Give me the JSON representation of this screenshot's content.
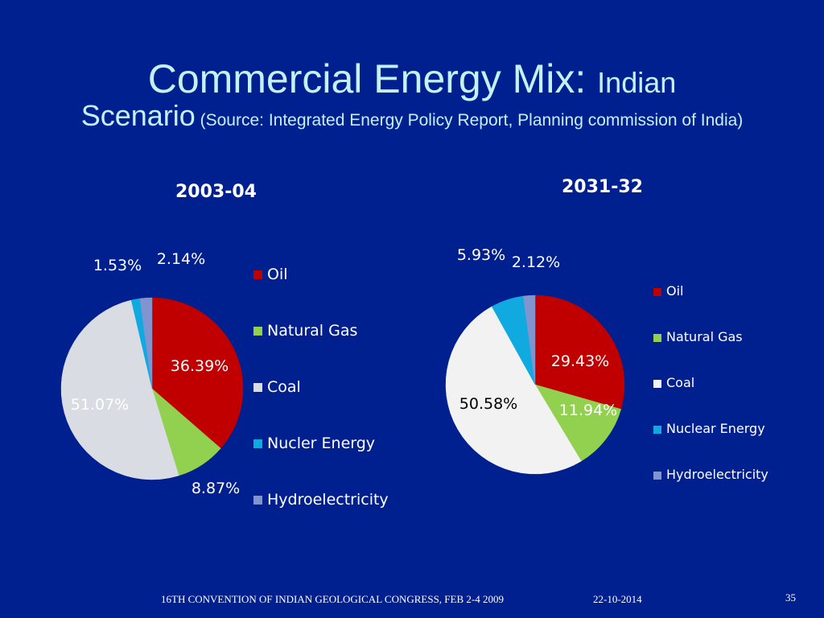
{
  "slide": {
    "title_main": "Commercial Energy Mix: ",
    "title_sub1": "Indian",
    "title_sub2": "Scenario",
    "title_source": " (Source: Integrated Energy Policy Report, Planning commission of India)",
    "footer_text": "16TH CONVENTION OF INDIAN GEOLOGICAL CONGRESS, FEB 2-4 2009",
    "footer_date": "22-10-2014",
    "page_number": "35",
    "background_color": "#00208f",
    "title_color": "#c4f1f6"
  },
  "chart_data": [
    {
      "type": "pie",
      "title": "2003-04",
      "categories": [
        "Oil",
        "Natural Gas",
        "Coal",
        "Nucler Energy",
        "Hydroelectricity"
      ],
      "values": [
        36.39,
        8.87,
        51.07,
        1.53,
        2.14
      ],
      "labels": [
        "36.39%",
        "8.87%",
        "51.07%",
        "1.53%",
        "2.14%"
      ],
      "colors": [
        "#c00000",
        "#92d050",
        "#d9dce3",
        "#10a9e0",
        "#8094d0"
      ],
      "legend_position": "right"
    },
    {
      "type": "pie",
      "title": "2031-32",
      "categories": [
        "Oil",
        "Natural Gas",
        "Coal",
        "Nuclear Energy",
        "Hydroelectricity"
      ],
      "values": [
        29.43,
        11.94,
        50.58,
        5.93,
        2.12
      ],
      "labels": [
        "29.43%",
        "11.94%",
        "50.58%",
        "5.93%",
        "2.12%"
      ],
      "colors": [
        "#c00000",
        "#92d050",
        "#f2f2f2",
        "#10a9e0",
        "#8094d0"
      ],
      "legend_position": "right"
    }
  ]
}
